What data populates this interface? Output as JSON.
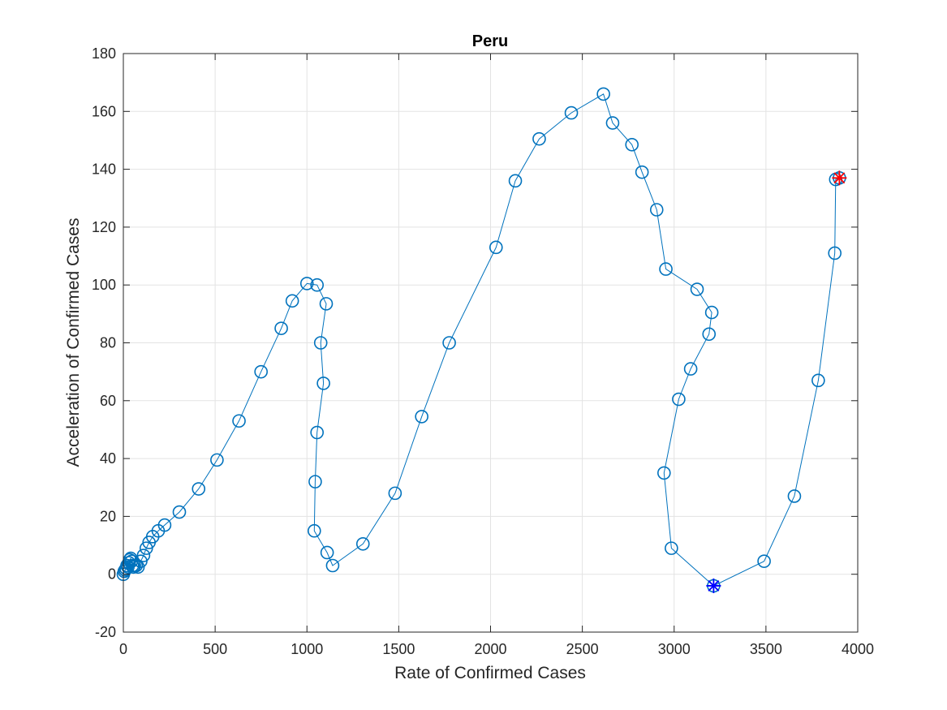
{
  "chart_data": {
    "type": "line",
    "title": "Peru",
    "xlabel": "Rate of Confirmed Cases",
    "ylabel": "Acceleration of Confirmed Cases",
    "xlim": [
      0,
      4000
    ],
    "ylim": [
      -20,
      180
    ],
    "xticks": [
      0,
      500,
      1000,
      1500,
      2000,
      2500,
      3000,
      3500,
      4000
    ],
    "yticks": [
      -20,
      0,
      20,
      40,
      60,
      80,
      100,
      120,
      140,
      160,
      180
    ],
    "grid": true,
    "box": true,
    "series": [
      {
        "marker": "circle",
        "color": "#0072BD",
        "x": [
          0,
          5,
          10,
          15,
          20,
          25,
          30,
          35,
          40,
          45,
          50,
          55,
          60,
          70,
          80,
          95,
          110,
          125,
          140,
          160,
          190,
          225,
          305,
          410,
          510,
          630,
          750,
          860,
          920,
          1000,
          1055,
          1105,
          1075,
          1090,
          1055,
          1045,
          1040,
          1110,
          1140,
          1305,
          1480,
          1625,
          1775,
          2030,
          2135,
          2265,
          2440,
          2615,
          2665,
          2770,
          2825,
          2905,
          2955,
          3125,
          3205,
          3190,
          3090,
          3025,
          2945,
          2985,
          3215,
          3490,
          3655,
          3785,
          3875,
          3880,
          3900
        ],
        "y": [
          0,
          1,
          1.5,
          2,
          3,
          2.5,
          4,
          5,
          5.5,
          4.5,
          3,
          2.5,
          3,
          3,
          2.5,
          4.5,
          6.5,
          9,
          11,
          13,
          15,
          17,
          21.5,
          29.5,
          39.5,
          53,
          70,
          85,
          94.5,
          100.5,
          100,
          93.5,
          80,
          66,
          49,
          32,
          15,
          7.5,
          3,
          10.5,
          28,
          54.5,
          80,
          113,
          136,
          150.5,
          159.5,
          166,
          156,
          148.5,
          139,
          126,
          105.5,
          98.5,
          90.5,
          83,
          71,
          60.5,
          35,
          9,
          -4,
          4.5,
          27,
          67,
          111,
          136.5,
          137
        ]
      }
    ],
    "highlights": [
      {
        "name": "minimum",
        "marker": "asterisk",
        "color": "#0000FF",
        "x": 3215,
        "y": -4
      },
      {
        "name": "latest",
        "marker": "asterisk",
        "color": "#FF0000",
        "x": 3900,
        "y": 137
      }
    ]
  }
}
